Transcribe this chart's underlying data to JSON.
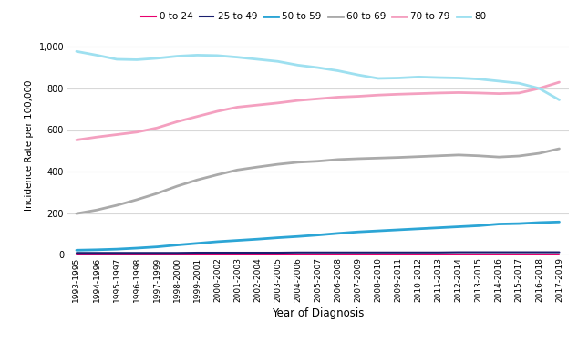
{
  "years": [
    "1993-1995",
    "1994-1996",
    "1995-1997",
    "1996-1998",
    "1997-1999",
    "1998-2000",
    "1999-2001",
    "2000-2002",
    "2001-2003",
    "2002-2004",
    "2003-2005",
    "2004-2006",
    "2005-2007",
    "2006-2008",
    "2007-2009",
    "2008-2010",
    "2009-2011",
    "2010-2012",
    "2011-2013",
    "2012-2014",
    "2013-2015",
    "2014-2016",
    "2015-2017",
    "2016-2018",
    "2017-2019"
  ],
  "series": {
    "0 to 24": {
      "color": "#e8006e",
      "linewidth": 1.5,
      "values": [
        1.2,
        1.2,
        1.2,
        1.2,
        1.2,
        1.2,
        1.2,
        1.2,
        1.2,
        1.2,
        1.2,
        1.2,
        1.2,
        1.2,
        1.2,
        1.2,
        1.2,
        1.2,
        1.2,
        1.2,
        1.2,
        1.2,
        1.2,
        1.2,
        1.2
      ]
    },
    "25 to 49": {
      "color": "#1a1f6e",
      "linewidth": 1.5,
      "values": [
        9,
        9,
        9,
        9,
        9,
        9,
        10,
        10,
        10,
        10,
        10,
        11,
        11,
        11,
        11,
        11,
        11,
        11,
        11,
        12,
        12,
        12,
        12,
        12,
        12
      ]
    },
    "50 to 59": {
      "color": "#2ca5d5",
      "linewidth": 2.0,
      "values": [
        22,
        24,
        27,
        32,
        38,
        47,
        55,
        63,
        69,
        75,
        82,
        88,
        95,
        103,
        110,
        115,
        120,
        125,
        130,
        135,
        140,
        148,
        150,
        155,
        158
      ]
    },
    "60 to 69": {
      "color": "#aaaaaa",
      "linewidth": 2.0,
      "values": [
        198,
        215,
        238,
        265,
        295,
        330,
        360,
        385,
        408,
        422,
        435,
        445,
        450,
        458,
        462,
        465,
        468,
        472,
        476,
        480,
        476,
        470,
        475,
        488,
        510
      ]
    },
    "70 to 79": {
      "color": "#f4a0c0",
      "linewidth": 2.0,
      "values": [
        552,
        566,
        578,
        590,
        610,
        640,
        665,
        690,
        710,
        720,
        730,
        742,
        750,
        758,
        762,
        768,
        772,
        775,
        778,
        780,
        778,
        775,
        778,
        800,
        830
      ]
    },
    "80+": {
      "color": "#9ee0f0",
      "linewidth": 2.0,
      "values": [
        978,
        960,
        940,
        938,
        945,
        955,
        960,
        958,
        950,
        940,
        930,
        912,
        900,
        885,
        865,
        848,
        850,
        855,
        852,
        850,
        845,
        835,
        825,
        800,
        745
      ]
    }
  },
  "xlabel": "Year of Diagnosis",
  "ylabel": "Incidence Rate per 100,000",
  "ylim": [
    0,
    1050
  ],
  "yticks": [
    0,
    200,
    400,
    600,
    800,
    1000
  ],
  "ytick_labels": [
    "0",
    "200",
    "400",
    "600",
    "800",
    "1,000"
  ],
  "background_color": "#ffffff",
  "grid_color": "#d8d8d8",
  "legend_order": [
    "0 to 24",
    "25 to 49",
    "50 to 59",
    "60 to 69",
    "70 to 79",
    "80+"
  ],
  "legend_fontsize": 7.5,
  "tick_fontsize": 6.5,
  "axis_label_fontsize": 8.5
}
